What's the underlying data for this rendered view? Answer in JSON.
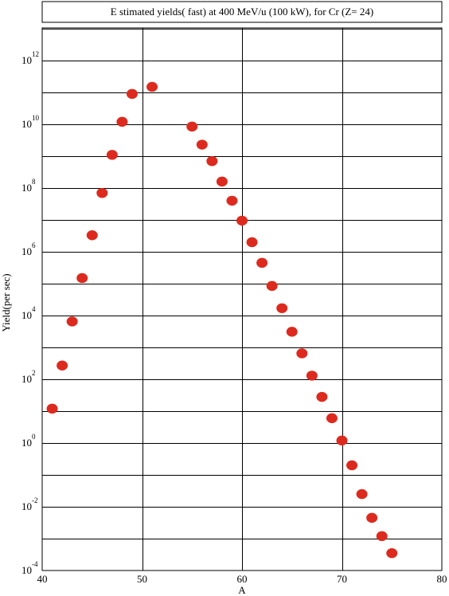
{
  "chart_data": {
    "type": "scatter",
    "title": "E stimated yields( fast) at 400 MeV/u (100 kW), for Cr (Z= 24)",
    "xlabel": "A",
    "ylabel": "Yield(per sec)",
    "xlim": [
      40,
      80
    ],
    "ylim_log10": [
      -4,
      13
    ],
    "y_scale": "log",
    "grid": true,
    "legend": "none",
    "marker_color": "#dd2a1e",
    "x_ticks": [
      40,
      50,
      60,
      70,
      80
    ],
    "y_ticks": [
      {
        "base": "10",
        "exp": "-4",
        "log": -4
      },
      {
        "base": "10",
        "exp": "-2",
        "log": -2
      },
      {
        "base": "10",
        "exp": "0",
        "log": 0
      },
      {
        "base": "10",
        "exp": "2",
        "log": 2
      },
      {
        "base": "10",
        "exp": "4",
        "log": 4
      },
      {
        "base": "10",
        "exp": "6",
        "log": 6
      },
      {
        "base": "10",
        "exp": "8",
        "log": 8
      },
      {
        "base": "10",
        "exp": "10",
        "log": 10
      },
      {
        "base": "10",
        "exp": "12",
        "log": 12
      }
    ],
    "points": [
      {
        "x": 41,
        "y": 12.0
      },
      {
        "x": 42,
        "y": 270.0
      },
      {
        "x": 43,
        "y": 6500.0
      },
      {
        "x": 44,
        "y": 150000.0
      },
      {
        "x": 45,
        "y": 3300000.0
      },
      {
        "x": 46,
        "y": 70000000.0
      },
      {
        "x": 47,
        "y": 1100000000.0
      },
      {
        "x": 48,
        "y": 12000000000.0
      },
      {
        "x": 49,
        "y": 90000000000.0
      },
      {
        "x": 51,
        "y": 150000000000.0
      },
      {
        "x": 55,
        "y": 8500000000.0
      },
      {
        "x": 56,
        "y": 2300000000.0
      },
      {
        "x": 57,
        "y": 700000000.0
      },
      {
        "x": 58,
        "y": 160000000.0
      },
      {
        "x": 59,
        "y": 40000000.0
      },
      {
        "x": 60,
        "y": 9500000.0
      },
      {
        "x": 61,
        "y": 2000000.0
      },
      {
        "x": 62,
        "y": 450000.0
      },
      {
        "x": 63,
        "y": 85000.0
      },
      {
        "x": 64,
        "y": 17000.0
      },
      {
        "x": 65,
        "y": 3100.0
      },
      {
        "x": 66,
        "y": 650.0
      },
      {
        "x": 67,
        "y": 130.0
      },
      {
        "x": 68,
        "y": 28.0
      },
      {
        "x": 69,
        "y": 6.0
      },
      {
        "x": 70,
        "y": 1.2
      },
      {
        "x": 71,
        "y": 0.2
      },
      {
        "x": 72,
        "y": 0.025
      },
      {
        "x": 73,
        "y": 0.0045
      },
      {
        "x": 74,
        "y": 0.0012
      },
      {
        "x": 75,
        "y": 0.00035
      }
    ]
  }
}
